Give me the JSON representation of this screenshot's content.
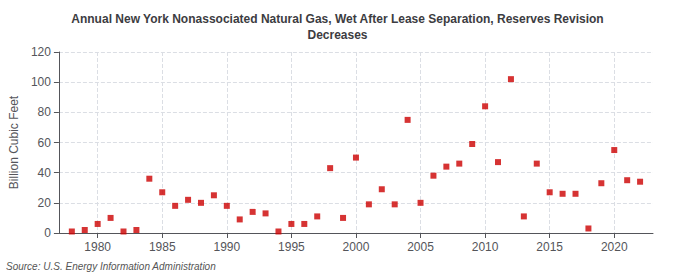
{
  "chart_data": {
    "type": "scatter",
    "title": "Annual New York Nonassociated Natural Gas, Wet After Lease Separation, Reserves Revision\nDecreases",
    "ylabel": "Billion Cubic Feet",
    "annotation": "Source: U.S. Energy Information Administration",
    "color": "#cc0000",
    "marker": "square",
    "grid": true,
    "xlim": [
      1977,
      2023
    ],
    "xticks": [
      1980,
      1985,
      1990,
      1995,
      2000,
      2005,
      2010,
      2015,
      2020
    ],
    "ylim": [
      0,
      120
    ],
    "yticks": [
      0,
      20,
      40,
      60,
      80,
      100,
      120
    ],
    "x": [
      1978,
      1979,
      1980,
      1981,
      1982,
      1983,
      1984,
      1985,
      1986,
      1987,
      1988,
      1989,
      1990,
      1991,
      1992,
      1993,
      1994,
      1995,
      1996,
      1997,
      1998,
      1999,
      2000,
      2001,
      2002,
      2003,
      2004,
      2005,
      2006,
      2007,
      2008,
      2009,
      2010,
      2011,
      2012,
      2013,
      2014,
      2015,
      2016,
      2017,
      2018,
      2019,
      2020,
      2021,
      2022
    ],
    "values": [
      1,
      2,
      6,
      10,
      1,
      2,
      36,
      27,
      18,
      22,
      20,
      25,
      18,
      9,
      14,
      13,
      1,
      6,
      6,
      11,
      43,
      10,
      50,
      19,
      29,
      19,
      75,
      20,
      38,
      44,
      46,
      59,
      84,
      47,
      102,
      11,
      46,
      27,
      26,
      26,
      3,
      33,
      55,
      35,
      34
    ]
  }
}
